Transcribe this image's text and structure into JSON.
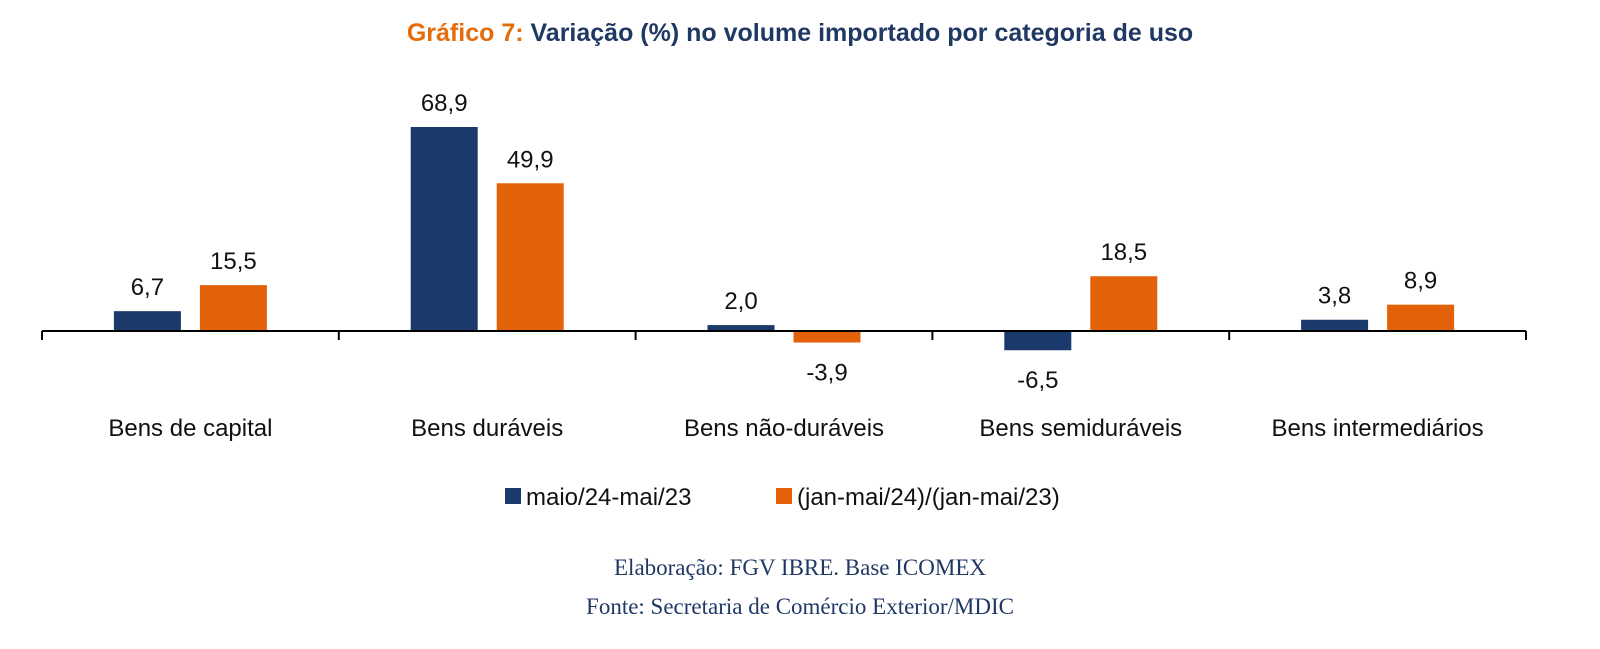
{
  "title": {
    "prefix": "Gráfico 7:",
    "text": "Variação (%) no volume importado por categoria de uso",
    "prefix_color": "#e46c0a",
    "text_color": "#1f3864"
  },
  "chart_data": {
    "type": "bar",
    "categories": [
      "Bens de capital",
      "Bens duráveis",
      "Bens não-duráveis",
      "Bens semiduráveis",
      "Bens intermediários"
    ],
    "series": [
      {
        "name": "maio/24-mai/23",
        "values": [
          6.7,
          68.9,
          2.0,
          -6.5,
          3.8
        ],
        "labels": [
          "6,7",
          "68,9",
          "2,0",
          "-6,5",
          "3,8"
        ],
        "color": "#1a3a6b"
      },
      {
        "name": "(jan-mai/24)/(jan-mai/23)",
        "values": [
          15.5,
          49.9,
          -3.9,
          18.5,
          8.9
        ],
        "labels": [
          "15,5",
          "49,9",
          "-3,9",
          "18,5",
          "8,9"
        ],
        "color": "#e36209"
      }
    ],
    "ylim": [
      -10,
      75
    ],
    "grid": false,
    "legend": "bottom"
  },
  "footer": {
    "line1": "Elaboração: FGV IBRE. Base ICOMEX",
    "line2": "Fonte: Secretaria de Comércio Exterior/MDIC"
  }
}
